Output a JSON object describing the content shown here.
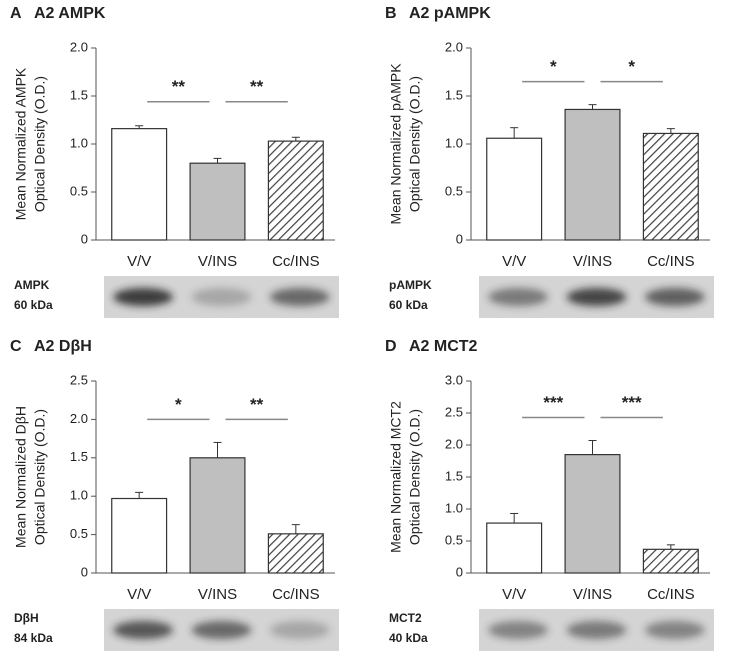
{
  "chart_data": [
    {
      "type": "bar",
      "panel": "A",
      "title": "A2 AMPK",
      "ylabel": [
        "Mean Normalized AMPK",
        "Optical Density (O.D.)"
      ],
      "categories": [
        "V/V",
        "V/INS",
        "Cc/INS"
      ],
      "values": [
        1.16,
        0.8,
        1.03
      ],
      "errors": [
        0.03,
        0.05,
        0.04
      ],
      "colors": [
        "#ffffff",
        "#bfbfbf",
        "#404040"
      ],
      "hatch": [
        false,
        false,
        true
      ],
      "ylim": [
        0,
        2
      ],
      "yticks": [
        0,
        0.5,
        {
          "value": 1,
          "label": "1.0"
        },
        1.5,
        {
          "value": 2,
          "label": "2.0"
        }
      ],
      "significance": [
        "**",
        "**"
      ],
      "blot_label": [
        "AMPK",
        "60 kDa"
      ]
    },
    {
      "type": "bar",
      "panel": "B",
      "title": "A2 pAMPK",
      "ylabel": [
        "Mean Normalized pAMPK",
        "Optical Density (O.D.)"
      ],
      "categories": [
        "V/V",
        "V/INS",
        "Cc/INS"
      ],
      "values": [
        1.06,
        1.36,
        1.11
      ],
      "errors": [
        0.11,
        0.05,
        0.05
      ],
      "colors": [
        "#ffffff",
        "#bfbfbf",
        "#404040"
      ],
      "hatch": [
        false,
        false,
        true
      ],
      "ylim": [
        0,
        2
      ],
      "yticks": [
        0,
        0.5,
        {
          "value": 1,
          "label": "1.0"
        },
        1.5,
        {
          "value": 2,
          "label": "2.0"
        }
      ],
      "significance": [
        "*",
        "*"
      ],
      "blot_label": [
        "pAMPK",
        "60 kDa"
      ]
    },
    {
      "type": "bar",
      "panel": "C",
      "title": "A2 DβH",
      "ylabel": [
        "Mean Normalized DβH",
        "Optical Density (O.D.)"
      ],
      "categories": [
        "V/V",
        "V/INS",
        "Cc/INS"
      ],
      "values": [
        0.97,
        1.5,
        0.51
      ],
      "errors": [
        0.08,
        0.2,
        0.12
      ],
      "colors": [
        "#ffffff",
        "#bfbfbf",
        "#404040"
      ],
      "hatch": [
        false,
        false,
        true
      ],
      "ylim": [
        0,
        2.5
      ],
      "yticks": [
        0,
        0.5,
        {
          "value": 1,
          "label": "1.0"
        },
        1.5,
        {
          "value": 2,
          "label": "2.0"
        },
        2.5
      ],
      "significance": [
        "*",
        "**"
      ],
      "blot_label": [
        "DβH",
        "84 kDa"
      ]
    },
    {
      "type": "bar",
      "panel": "D",
      "title": "A2 MCT2",
      "ylabel": [
        "Mean Normalized MCT2",
        "Optical Density (O.D.)"
      ],
      "categories": [
        "V/V",
        "V/INS",
        "Cc/INS"
      ],
      "values": [
        0.78,
        1.85,
        0.37
      ],
      "errors": [
        0.15,
        0.22,
        0.07
      ],
      "colors": [
        "#ffffff",
        "#bfbfbf",
        "#404040"
      ],
      "hatch": [
        false,
        false,
        true
      ],
      "ylim": [
        0,
        3
      ],
      "yticks": [
        0,
        0.5,
        {
          "value": 1,
          "label": "1.0"
        },
        1.5,
        {
          "value": 2,
          "label": "2.0"
        },
        2.5,
        {
          "value": 3,
          "label": "3.0"
        }
      ],
      "significance": [
        "***",
        "***"
      ],
      "blot_label": [
        "MCT2",
        "40 kDa"
      ]
    }
  ]
}
